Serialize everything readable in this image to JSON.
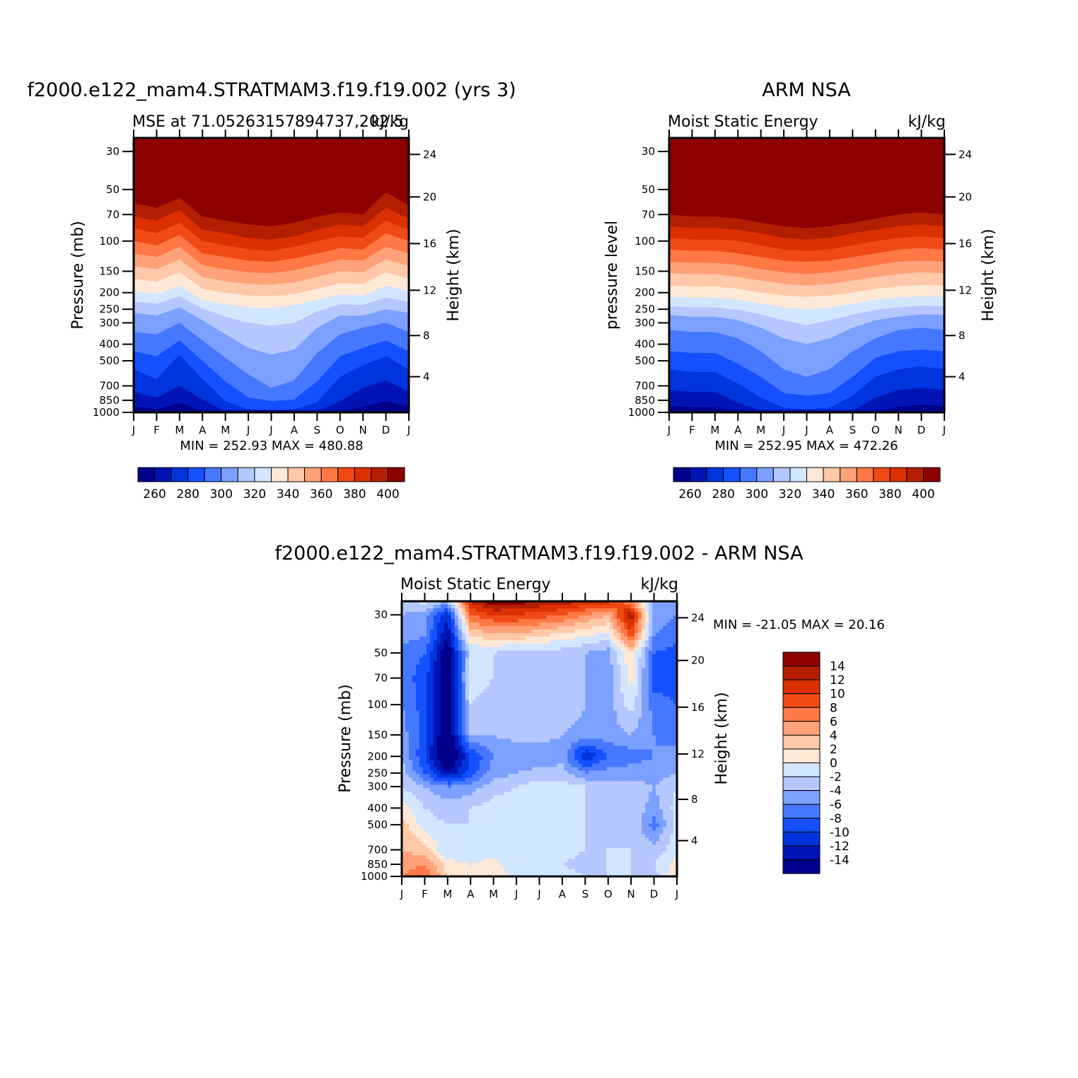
{
  "palette": [
    "#00008c",
    "#0014b4",
    "#0034dc",
    "#1450ff",
    "#4678ff",
    "#7ca0ff",
    "#b4c8ff",
    "#d2e6ff",
    "#ffe8d6",
    "#ffc8a8",
    "#ffa27a",
    "#ff7846",
    "#f04a14",
    "#dc3000",
    "#b41e00",
    "#8c0000"
  ],
  "diff_palette": [
    "#00008c",
    "#0014b4",
    "#0034dc",
    "#1450ff",
    "#4678ff",
    "#7ca0ff",
    "#b4c8ff",
    "#d2e6ff",
    "#ffe8d6",
    "#ffc8a8",
    "#ffa27a",
    "#ff7846",
    "#f04a14",
    "#dc3000",
    "#b41e00",
    "#8c0000"
  ],
  "chart_data": [
    {
      "type": "contour",
      "id": "model",
      "title": "f2000.e122_mam4.STRATMAM3.f19.f19.002 (yrs 3)",
      "left_subtitle": "MSE at 71.05263157894737,202.5",
      "right_subtitle": "kJ/kg",
      "ylabel": "Pressure (mb)",
      "ylabel_right": "Height (km)",
      "minmax": "MIN = 252.93 MAX = 480.88",
      "months": [
        "J",
        "F",
        "M",
        "A",
        "M",
        "J",
        "J",
        "A",
        "S",
        "O",
        "N",
        "D",
        "J"
      ],
      "pressure_ticks": [
        "30",
        "50",
        "70",
        "100",
        "150",
        "200",
        "250",
        "300",
        "400",
        "500",
        "700",
        "850",
        "1000"
      ],
      "height_ticks": [
        "24",
        "20",
        "16",
        "12",
        "8",
        "4"
      ],
      "colorbar_labels": [
        "260",
        "280",
        "300",
        "320",
        "340",
        "360",
        "380",
        "400"
      ],
      "levels": [
        255,
        260,
        270,
        280,
        290,
        300,
        310,
        320,
        330,
        340,
        350,
        360,
        370,
        380,
        390,
        400
      ],
      "contours": {
        "note": "pressure (mb) at which each level boundary sits, per month (J..J, 13 values)",
        "lvl_400": [
          60,
          64,
          56,
          72,
          76,
          80,
          82,
          78,
          72,
          68,
          70,
          52,
          62
        ],
        "lvl_390": [
          72,
          76,
          66,
          86,
          90,
          96,
          98,
          94,
          86,
          80,
          82,
          64,
          74
        ],
        "lvl_380": [
          84,
          90,
          78,
          100,
          106,
          112,
          114,
          108,
          100,
          94,
          96,
          76,
          86
        ],
        "lvl_370": [
          100,
          106,
          92,
          118,
          124,
          130,
          132,
          126,
          118,
          110,
          112,
          90,
          100
        ],
        "lvl_360": [
          118,
          124,
          108,
          138,
          146,
          152,
          154,
          148,
          138,
          128,
          130,
          108,
          118
        ],
        "lvl_350": [
          140,
          146,
          128,
          162,
          172,
          178,
          180,
          174,
          162,
          150,
          152,
          128,
          140
        ],
        "lvl_340": [
          166,
          172,
          152,
          190,
          200,
          208,
          210,
          204,
          190,
          176,
          178,
          152,
          166
        ],
        "lvl_330": [
          196,
          204,
          182,
          222,
          234,
          244,
          246,
          236,
          220,
          206,
          208,
          182,
          196
        ],
        "lvl_320": [
          226,
          232,
          210,
          248,
          275,
          300,
          312,
          300,
          258,
          234,
          236,
          214,
          226
        ],
        "lvl_310": [
          262,
          272,
          244,
          290,
          350,
          420,
          460,
          430,
          320,
          272,
          272,
          250,
          262
        ],
        "lvl_300": [
          340,
          350,
          300,
          380,
          480,
          600,
          720,
          650,
          450,
          350,
          320,
          300,
          340
        ],
        "lvl_290": [
          440,
          470,
          380,
          500,
          660,
          820,
          860,
          840,
          660,
          470,
          420,
          380,
          440
        ],
        "lvl_280": [
          560,
          640,
          460,
          640,
          860,
          960,
          970,
          960,
          870,
          620,
          530,
          470,
          560
        ],
        "lvl_270": [
          760,
          820,
          700,
          840,
          990,
          1000,
          1000,
          1000,
          990,
          860,
          720,
          650,
          760
        ],
        "lvl_260": [
          920,
          960,
          880,
          980,
          1000,
          1000,
          1000,
          1000,
          1000,
          990,
          930,
          860,
          920
        ]
      }
    },
    {
      "type": "contour",
      "id": "obs",
      "title": "ARM NSA",
      "left_subtitle": "Moist Static Energy",
      "right_subtitle": "kJ/kg",
      "ylabel": "pressure level",
      "ylabel_right": "Height (km)",
      "minmax": "MIN = 252.95 MAX = 472.26",
      "months": [
        "J",
        "F",
        "M",
        "A",
        "M",
        "J",
        "J",
        "A",
        "S",
        "O",
        "N",
        "D",
        "J"
      ],
      "pressure_ticks": [
        "30",
        "50",
        "70",
        "100",
        "150",
        "200",
        "250",
        "300",
        "400",
        "500",
        "700",
        "850",
        "1000"
      ],
      "height_ticks": [
        "24",
        "20",
        "16",
        "12",
        "8",
        "4"
      ],
      "colorbar_labels": [
        "260",
        "280",
        "300",
        "320",
        "340",
        "360",
        "380",
        "400"
      ],
      "contours": {
        "lvl_400": [
          70,
          72,
          72,
          74,
          78,
          82,
          84,
          82,
          78,
          74,
          70,
          68,
          70
        ],
        "lvl_390": [
          82,
          84,
          84,
          86,
          90,
          96,
          98,
          96,
          90,
          86,
          82,
          80,
          82
        ],
        "lvl_380": [
          96,
          98,
          98,
          100,
          106,
          112,
          114,
          112,
          106,
          100,
          96,
          94,
          96
        ],
        "lvl_370": [
          112,
          114,
          114,
          118,
          124,
          130,
          132,
          130,
          124,
          118,
          112,
          110,
          112
        ],
        "lvl_360": [
          132,
          134,
          134,
          138,
          146,
          152,
          156,
          152,
          146,
          138,
          132,
          130,
          132
        ],
        "lvl_350": [
          154,
          156,
          156,
          162,
          170,
          178,
          182,
          178,
          170,
          162,
          156,
          152,
          154
        ],
        "lvl_340": [
          182,
          184,
          184,
          190,
          200,
          208,
          212,
          208,
          200,
          190,
          184,
          180,
          182
        ],
        "lvl_330": [
          212,
          214,
          214,
          220,
          232,
          244,
          250,
          244,
          232,
          220,
          214,
          210,
          212
        ],
        "lvl_320": [
          240,
          244,
          244,
          252,
          268,
          290,
          310,
          290,
          268,
          252,
          244,
          238,
          240
        ],
        "lvl_310": [
          270,
          276,
          276,
          290,
          320,
          370,
          400,
          370,
          320,
          290,
          276,
          268,
          270
        ],
        "lvl_300": [
          330,
          340,
          340,
          370,
          440,
          560,
          620,
          560,
          440,
          370,
          330,
          320,
          330
        ],
        "lvl_290": [
          440,
          450,
          450,
          520,
          620,
          770,
          800,
          770,
          620,
          480,
          440,
          430,
          440
        ],
        "lvl_280": [
          560,
          580,
          580,
          680,
          820,
          940,
          960,
          940,
          800,
          620,
          560,
          540,
          560
        ],
        "lvl_270": [
          740,
          760,
          760,
          880,
          980,
          1000,
          1000,
          1000,
          980,
          820,
          740,
          720,
          740
        ],
        "lvl_260": [
          920,
          930,
          930,
          980,
          1000,
          1000,
          1000,
          1000,
          1000,
          990,
          930,
          900,
          920
        ]
      }
    },
    {
      "type": "contour",
      "id": "diff",
      "title": "f2000.e122_mam4.STRATMAM3.f19.f19.002 - ARM NSA",
      "left_subtitle": "Moist Static Energy",
      "right_subtitle": "kJ/kg",
      "ylabel": "Pressure (mb)",
      "ylabel_right": "Height (km)",
      "minmax": "MIN = -21.05 MAX =  20.16",
      "months": [
        "J",
        "F",
        "M",
        "A",
        "M",
        "J",
        "J",
        "A",
        "S",
        "O",
        "N",
        "D",
        "J"
      ],
      "pressure_ticks": [
        "30",
        "50",
        "70",
        "100",
        "150",
        "200",
        "250",
        "300",
        "400",
        "500",
        "700",
        "850",
        "1000"
      ],
      "height_ticks": [
        "24",
        "20",
        "16",
        "12",
        "8",
        "4"
      ],
      "colorbar_labels": [
        "14",
        "12",
        "10",
        "8",
        "6",
        "4",
        "2",
        "0",
        "-2",
        "-4",
        "-6",
        "-8",
        "-10",
        "-12",
        "-14"
      ],
      "levels": [
        -14,
        -12,
        -10,
        -8,
        -6,
        -4,
        -2,
        0,
        2,
        4,
        6,
        8,
        10,
        12,
        14
      ],
      "grid_pressures": [
        25,
        30,
        40,
        50,
        70,
        100,
        150,
        200,
        250,
        300,
        400,
        500,
        700,
        850,
        1000
      ],
      "grid_values": [
        [
          -3,
          -1,
          -4,
          12,
          16,
          15,
          14,
          13,
          12,
          11,
          6,
          -6,
          -6
        ],
        [
          -4,
          -5,
          -12,
          8,
          10,
          10,
          9,
          8,
          6,
          4,
          14,
          -5,
          -6
        ],
        [
          -5,
          -6,
          -14,
          2,
          3,
          3,
          2,
          1,
          0,
          -1,
          9,
          -6,
          -7
        ],
        [
          -7,
          -8,
          -16,
          -2,
          -2,
          -3,
          -3,
          -3,
          -4,
          -5,
          2,
          -8,
          -9
        ],
        [
          -7,
          -9,
          -17,
          -1,
          -2,
          -3,
          -3,
          -3,
          -4,
          -5,
          1,
          -9,
          -9
        ],
        [
          -6,
          -9,
          -16,
          -2,
          -3,
          -3,
          -2,
          -2,
          -4,
          -5,
          -1,
          -7,
          -8
        ],
        [
          -5,
          -9,
          -17,
          -4,
          -4,
          -3,
          -3,
          -4,
          -5,
          -5,
          -4,
          -6,
          -7
        ],
        [
          -4,
          -10,
          -18,
          -10,
          -6,
          -6,
          -6,
          -5,
          -12,
          -8,
          -7,
          -6,
          -5
        ],
        [
          -3,
          -8,
          -14,
          -9,
          -5,
          -4,
          -3,
          -3,
          -6,
          -5,
          -5,
          -5,
          -4
        ],
        [
          -2,
          -4,
          -6,
          -5,
          -3,
          -2,
          -1,
          -1,
          -2,
          -3,
          -3,
          -4,
          -2
        ],
        [
          1,
          -2,
          -3,
          -2,
          -1,
          -1,
          -1,
          -1,
          -2,
          -3,
          -2,
          -5,
          -1
        ],
        [
          3,
          -1,
          -2,
          -2,
          -1,
          -1,
          -1,
          -1,
          -2,
          -3,
          -2,
          -7,
          -1
        ],
        [
          4,
          3,
          -2,
          -2,
          -1,
          -1,
          -1,
          -1,
          -2,
          -2,
          -2,
          -3,
          -1
        ],
        [
          5,
          6,
          1,
          0,
          1,
          -2,
          -2,
          -2,
          -3,
          -2,
          -2,
          -2,
          1
        ],
        [
          6,
          8,
          2,
          0,
          2,
          -1,
          -1,
          -1,
          -2,
          -2,
          -2,
          -3,
          2
        ]
      ]
    }
  ]
}
